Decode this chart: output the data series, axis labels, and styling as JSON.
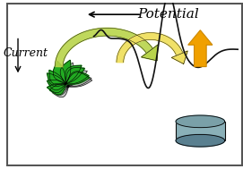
{
  "title": "Potential",
  "current_label": "Current",
  "bg_color": "#ffffff",
  "border_color": "#555555",
  "plant_color": "#22aa22",
  "plant_shadow": "#888888",
  "arrow1_color": "#b8d44a",
  "arrow2_color": "#f0e060",
  "arrow2_outline": "#ccaa00",
  "orange_arrow_color": "#f0a000",
  "orange_arrow_outline": "#cc8800",
  "cylinder_top": "#7aa0a8",
  "cylinder_body": "#8ab0b8",
  "cylinder_shadow": "#5a8090",
  "voltammetry_color": "#111111",
  "text_color": "#000000",
  "italic_style": "italic"
}
